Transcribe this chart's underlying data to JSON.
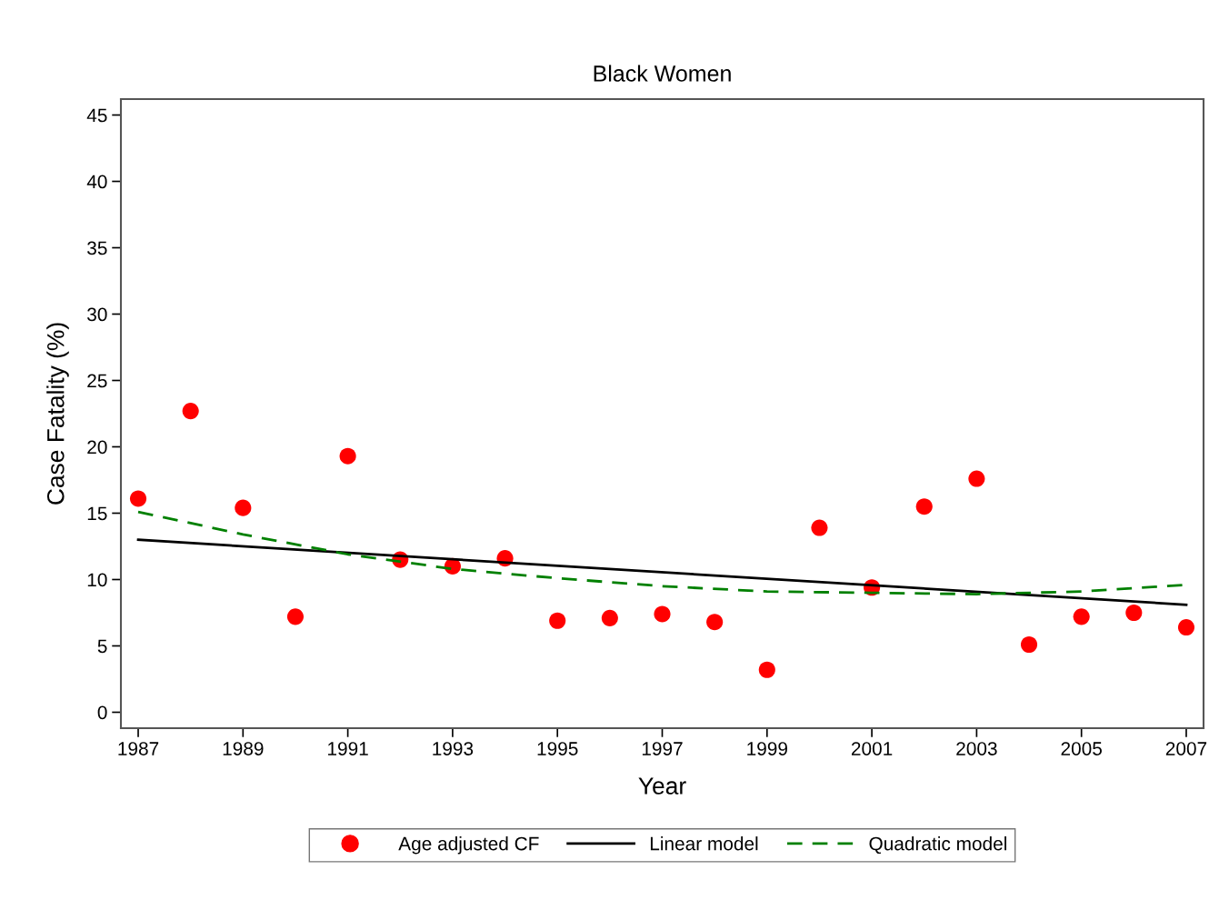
{
  "chart_data": {
    "type": "scatter",
    "title": "Black Women",
    "xlabel": "Year",
    "ylabel": "Case Fatality (%)",
    "x": [
      1987,
      1988,
      1989,
      1990,
      1991,
      1992,
      1993,
      1994,
      1995,
      1996,
      1997,
      1998,
      1999,
      2000,
      2001,
      2002,
      2003,
      2004,
      2005,
      2006,
      2007
    ],
    "series": [
      {
        "name": "Age adjusted CF",
        "color": "#ff0000",
        "marker": "circle",
        "values": [
          16.1,
          22.7,
          15.4,
          7.2,
          19.3,
          11.5,
          11.0,
          11.6,
          6.9,
          7.1,
          7.4,
          6.8,
          3.2,
          13.9,
          9.4,
          15.5,
          17.6,
          5.1,
          7.2,
          7.5,
          6.4
        ]
      },
      {
        "name": "Linear model",
        "type": "line",
        "color": "#000000",
        "line_style": "solid",
        "x": [
          1987,
          2007
        ],
        "values": [
          13.0,
          8.1
        ]
      },
      {
        "name": "Quadratic model",
        "type": "line",
        "color": "#008000",
        "line_style": "dashed",
        "x": [
          1987,
          1989,
          1991,
          1993,
          1995,
          1997,
          1999,
          2001,
          2003,
          2005,
          2007
        ],
        "values": [
          15.1,
          13.4,
          11.9,
          10.8,
          10.1,
          9.5,
          9.1,
          9.0,
          8.9,
          9.1,
          9.6
        ]
      }
    ],
    "xlim": [
      1986.67,
      2007.33
    ],
    "xticks": [
      1987,
      1989,
      1991,
      1993,
      1995,
      1997,
      1999,
      2001,
      2003,
      2005,
      2007
    ],
    "ylim": [
      -1.2,
      46.2
    ],
    "yticks": [
      0,
      5,
      10,
      15,
      20,
      25,
      30,
      35,
      40,
      45
    ],
    "grid": false,
    "legend": "bottom"
  }
}
